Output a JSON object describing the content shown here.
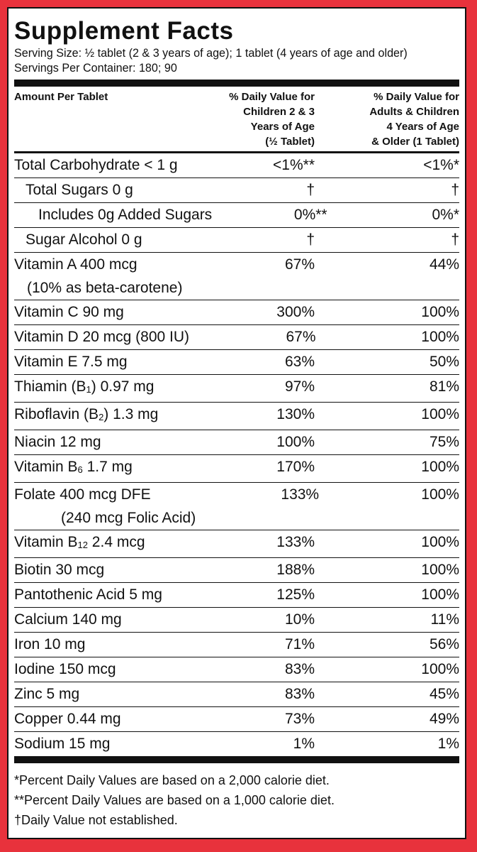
{
  "title": "Supplement Facts",
  "serving_size": "Serving Size: ½ tablet (2 & 3 years of age); 1 tablet (4 years of age and older)",
  "servings_per_container": "Servings Per Container: 180; 90",
  "header": {
    "col1": "Amount Per Tablet",
    "col2": "% Daily Value for\nChildren 2 & 3\nYears of Age\n(½ Tablet)",
    "col3": "% Daily Value for\nAdults & Children\n4 Years of Age\n& Older (1 Tablet)"
  },
  "rows": [
    {
      "name": "Total Carbohydrate < 1 g",
      "v1": "<1%**",
      "v2": "<1%*"
    },
    {
      "name": "Total Sugars 0 g",
      "v1": "†",
      "v2": "†"
    },
    {
      "name": "Includes 0g Added Sugars",
      "v1": "0%**",
      "v2": "0%*"
    },
    {
      "name": "Sugar Alcohol 0 g",
      "v1": "†",
      "v2": "†"
    },
    {
      "name": "Vitamin A 400 mcg",
      "name2": "(10% as beta-carotene)",
      "v1": "67%",
      "v2": "44%"
    },
    {
      "name": "Vitamin C 90 mg",
      "v1": "300%",
      "v2": "100%"
    },
    {
      "name": "Vitamin D 20 mcg (800 IU)",
      "v1": "67%",
      "v2": "100%"
    },
    {
      "name": "Vitamin E 7.5 mg",
      "v1": "63%",
      "v2": "50%"
    },
    {
      "name_pre": "Thiamin (B",
      "name_sub": "1",
      "name_post": ") 0.97 mg",
      "v1": "97%",
      "v2": "81%"
    },
    {
      "name_pre": "Riboflavin (B",
      "name_sub": "2",
      "name_post": ") 1.3 mg",
      "v1": "130%",
      "v2": "100%"
    },
    {
      "name": "Niacin 12 mg",
      "v1": "100%",
      "v2": "75%"
    },
    {
      "name_pre": "Vitamin B",
      "name_sub": "6",
      "name_post": " 1.7 mg",
      "v1": "170%",
      "v2": "100%"
    },
    {
      "name": "Folate 400 mcg DFE",
      "name2": "(240 mcg Folic Acid)",
      "v1": "133%",
      "v2": "100%"
    },
    {
      "name_pre": "Vitamin B",
      "name_sub": "12",
      "name_post": " 2.4 mcg",
      "v1": "133%",
      "v2": "100%"
    },
    {
      "name": "Biotin 30 mcg",
      "v1": "188%",
      "v2": "100%"
    },
    {
      "name": "Pantothenic Acid 5 mg",
      "v1": "125%",
      "v2": "100%"
    },
    {
      "name": "Calcium 140 mg",
      "v1": "10%",
      "v2": "11%"
    },
    {
      "name": "Iron 10 mg",
      "v1": "71%",
      "v2": "56%"
    },
    {
      "name": "Iodine 150 mcg",
      "v1": "83%",
      "v2": "100%"
    },
    {
      "name": "Zinc 5 mg",
      "v1": "83%",
      "v2": "45%"
    },
    {
      "name": "Copper 0.44 mg",
      "v1": "73%",
      "v2": "49%"
    },
    {
      "name": "Sodium 15 mg",
      "v1": "1%",
      "v2": "1%"
    }
  ],
  "footnotes": [
    "*Percent Daily Values are based on a 2,000 calorie diet.",
    "**Percent Daily Values are based on a 1,000 calorie diet.",
    "†Daily Value not established."
  ],
  "colors": {
    "border": "#e8323c",
    "rule": "#111111"
  }
}
